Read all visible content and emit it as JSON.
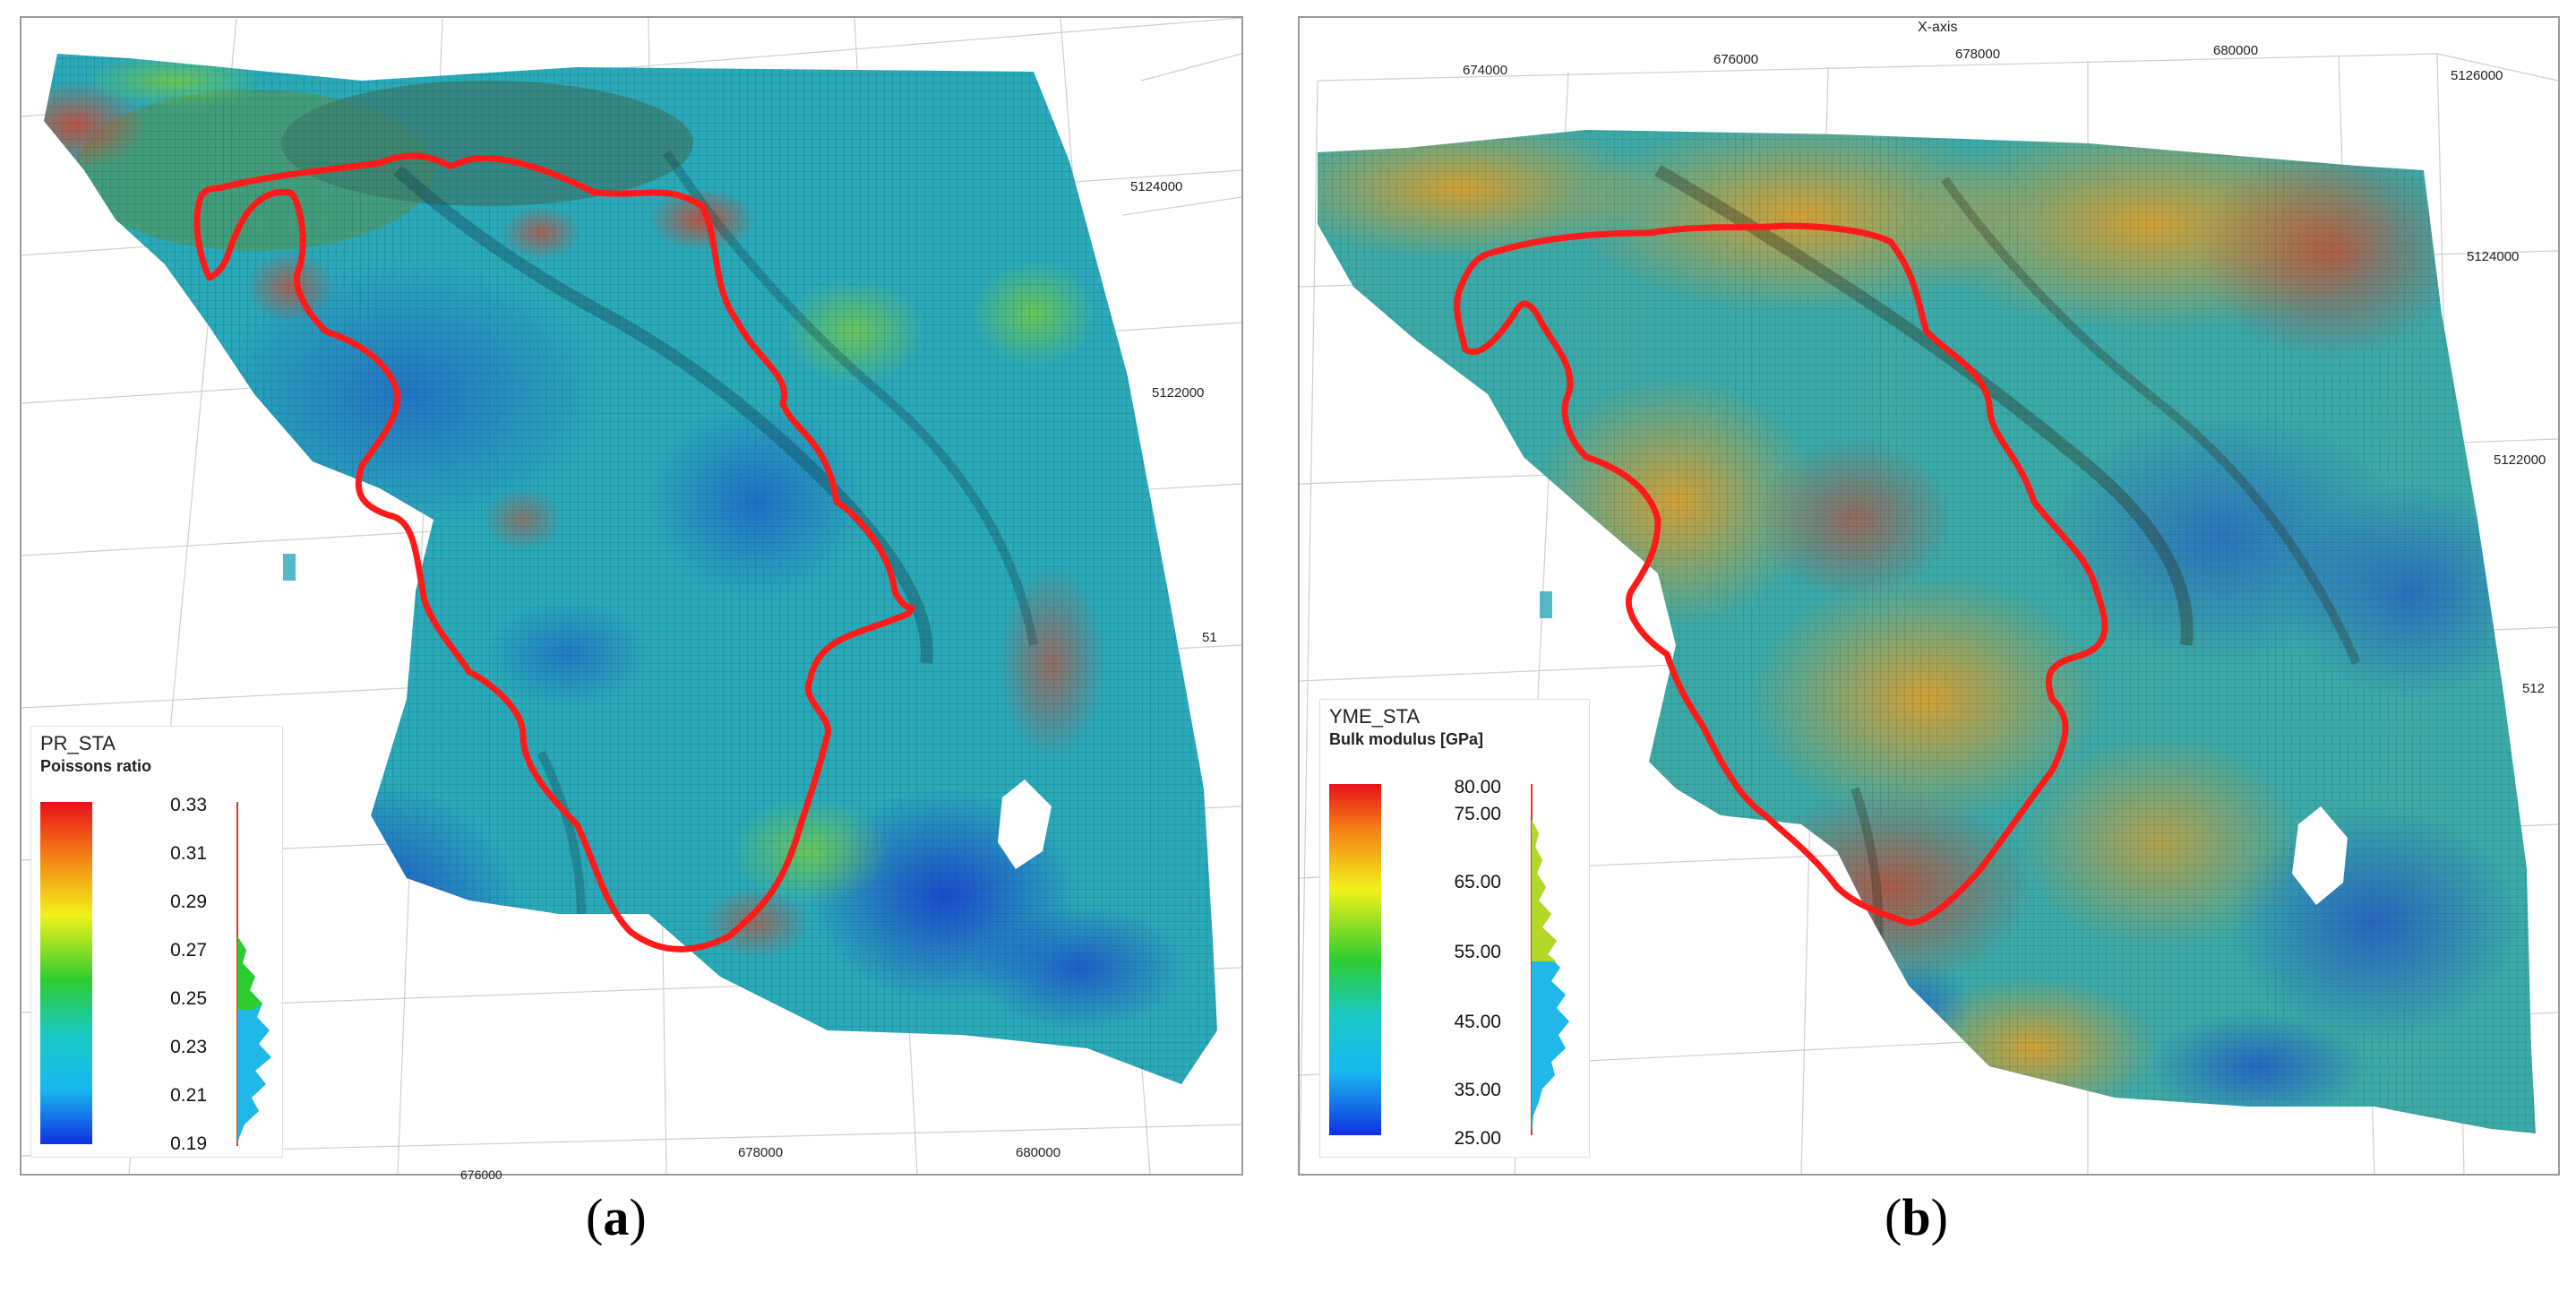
{
  "panels": [
    {
      "id": "a",
      "caption_open": "(",
      "caption_letter": "a",
      "caption_close": ")",
      "legend": {
        "property": "PR_STA",
        "label": "Poissons ratio",
        "ticks": [
          "0.33",
          "0.31",
          "0.29",
          "0.27",
          "0.25",
          "0.23",
          "0.21",
          "0.19"
        ],
        "colors": [
          "#e8101a",
          "#f47a14",
          "#f2f21a",
          "#2ecc30",
          "#19c9c4",
          "#18b8f0",
          "#1030e0"
        ]
      },
      "x_ticks": [
        "676000",
        "678000",
        "680000"
      ],
      "y_ticks": [
        "5124000",
        "5122000",
        "51"
      ],
      "x_axis_title": ""
    },
    {
      "id": "b",
      "caption_open": "(",
      "caption_letter": "b",
      "caption_close": ")",
      "legend": {
        "property": "YME_STA",
        "label": "Bulk modulus [GPa]",
        "ticks": [
          "80.00",
          "75.00",
          "65.00",
          "55.00",
          "45.00",
          "35.00",
          "25.00"
        ],
        "colors": [
          "#e8101a",
          "#f47a14",
          "#f2f21a",
          "#2ecc30",
          "#19c9c4",
          "#18b8f0",
          "#1030e0"
        ]
      },
      "x_ticks": [
        "674000",
        "676000",
        "678000",
        "680000"
      ],
      "y_ticks": [
        "5126000",
        "5124000",
        "5122000",
        "512"
      ],
      "x_axis_title": "X-axis"
    }
  ],
  "colors": {
    "outline": "#ff1a1a",
    "grid": "#cfcfcf",
    "surface_base": "#2aa9b8",
    "surface_dark": "#1f5f9a",
    "surface_warm": "#c7a43a"
  }
}
